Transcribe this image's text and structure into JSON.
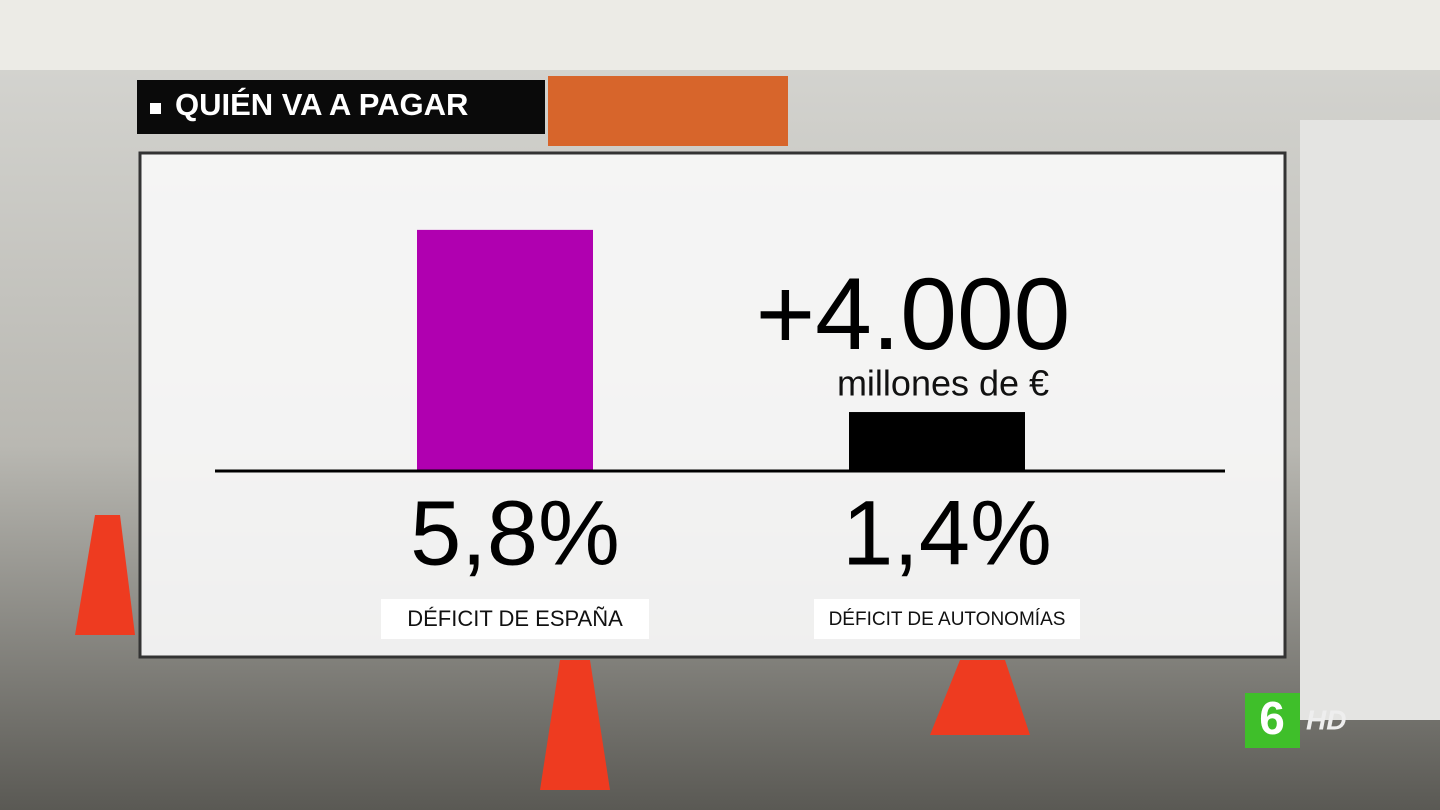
{
  "chart_data": {
    "type": "bar",
    "title": "QUIÉN VA A PAGAR",
    "categories": [
      "DÉFICIT DE ESPAÑA",
      "DÉFICIT DE AUTONOMÍAS"
    ],
    "values": [
      5.8,
      1.4
    ],
    "value_labels": [
      "5,8%",
      "1,4%"
    ],
    "colors": [
      "#b000b0",
      "#000000"
    ],
    "annotation": {
      "headline": "+4.000",
      "unit": "millones de €"
    }
  },
  "logo": {
    "mark": "6",
    "badge": "HD"
  }
}
